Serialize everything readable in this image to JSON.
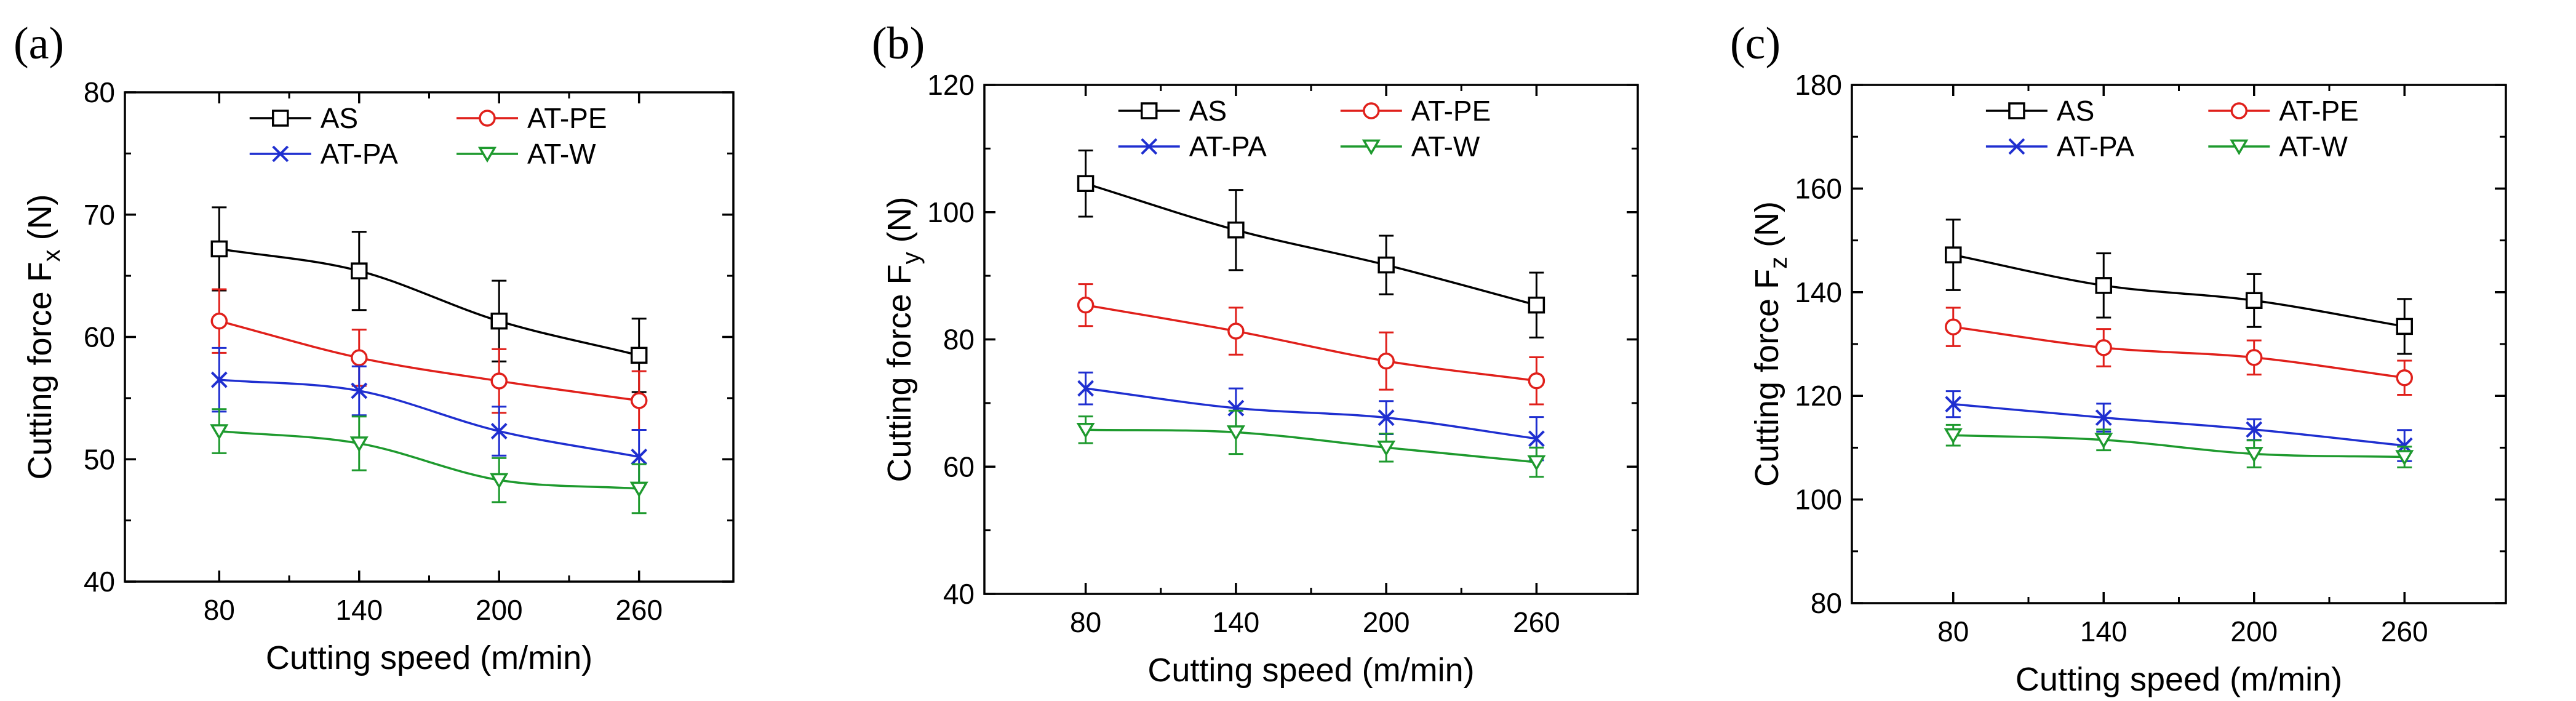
{
  "chart_data": [
    {
      "type": "line",
      "panel_label": "(a)",
      "xlabel": "Cutting speed (m/min)",
      "ylabel_main": "Cutting force F",
      "ylabel_sub": "x",
      "ylabel_unit": " (N)",
      "categories": [
        "80",
        "140",
        "200",
        "260"
      ],
      "ylim": [
        40,
        80
      ],
      "yticks": [
        40,
        50,
        60,
        70,
        80
      ],
      "series": [
        {
          "name": "AS",
          "color": "#000000",
          "marker": "square",
          "values": [
            67.2,
            65.4,
            61.3,
            58.5
          ],
          "errors": [
            3.4,
            3.2,
            3.3,
            3.0
          ]
        },
        {
          "name": "AT-PE",
          "color": "#e0201b",
          "marker": "circle",
          "values": [
            61.3,
            58.3,
            56.4,
            54.8
          ],
          "errors": [
            2.6,
            2.3,
            2.6,
            2.4
          ]
        },
        {
          "name": "AT-PA",
          "color": "#1f2fd0",
          "marker": "x",
          "values": [
            56.5,
            55.6,
            52.3,
            50.2
          ],
          "errors": [
            2.6,
            2.0,
            2.0,
            2.2
          ]
        },
        {
          "name": "AT-W",
          "color": "#1e9a2e",
          "marker": "triangle-down",
          "values": [
            52.3,
            51.3,
            48.3,
            47.6
          ],
          "errors": [
            1.8,
            2.2,
            1.8,
            2.0
          ]
        }
      ]
    },
    {
      "type": "line",
      "panel_label": "(b)",
      "xlabel": "Cutting speed (m/min)",
      "ylabel_main": "Cutting force F",
      "ylabel_sub": "y",
      "ylabel_unit": " (N)",
      "categories": [
        "80",
        "140",
        "200",
        "260"
      ],
      "ylim": [
        40,
        120
      ],
      "yticks": [
        40,
        60,
        80,
        100,
        120
      ],
      "series": [
        {
          "name": "AS",
          "color": "#000000",
          "marker": "square",
          "values": [
            104.5,
            97.2,
            91.7,
            85.4
          ],
          "errors": [
            5.2,
            6.3,
            4.6,
            5.1
          ]
        },
        {
          "name": "AT-PE",
          "color": "#e0201b",
          "marker": "circle",
          "values": [
            85.4,
            81.3,
            76.6,
            73.5
          ],
          "errors": [
            3.3,
            3.7,
            4.5,
            3.7
          ]
        },
        {
          "name": "AT-PA",
          "color": "#1f2fd0",
          "marker": "x",
          "values": [
            72.3,
            69.2,
            67.7,
            64.4
          ],
          "errors": [
            2.5,
            3.1,
            2.6,
            3.4
          ]
        },
        {
          "name": "AT-W",
          "color": "#1e9a2e",
          "marker": "triangle-down",
          "values": [
            65.8,
            65.4,
            63.0,
            60.7
          ],
          "errors": [
            2.1,
            3.4,
            2.2,
            2.3
          ]
        }
      ]
    },
    {
      "type": "line",
      "panel_label": "(c)",
      "xlabel": "Cutting speed (m/min)",
      "ylabel_main": "Cutting force F",
      "ylabel_sub": "z",
      "ylabel_unit": " (N)",
      "categories": [
        "80",
        "140",
        "200",
        "260"
      ],
      "ylim": [
        80,
        180
      ],
      "yticks": [
        80,
        100,
        120,
        140,
        160,
        180
      ],
      "series": [
        {
          "name": "AS",
          "color": "#000000",
          "marker": "square",
          "values": [
            147.2,
            141.3,
            138.4,
            133.4
          ],
          "errors": [
            6.8,
            6.2,
            5.1,
            5.3
          ]
        },
        {
          "name": "AT-PE",
          "color": "#e0201b",
          "marker": "circle",
          "values": [
            133.3,
            129.3,
            127.4,
            123.5
          ],
          "errors": [
            3.7,
            3.6,
            3.3,
            3.3
          ]
        },
        {
          "name": "AT-PA",
          "color": "#1f2fd0",
          "marker": "x",
          "values": [
            118.4,
            115.8,
            113.5,
            110.4
          ],
          "errors": [
            2.5,
            2.7,
            2.0,
            3.0
          ]
        },
        {
          "name": "AT-W",
          "color": "#1e9a2e",
          "marker": "triangle-down",
          "values": [
            112.4,
            111.5,
            108.8,
            108.2
          ],
          "errors": [
            2.0,
            2.0,
            2.6,
            2.0
          ]
        }
      ]
    }
  ]
}
